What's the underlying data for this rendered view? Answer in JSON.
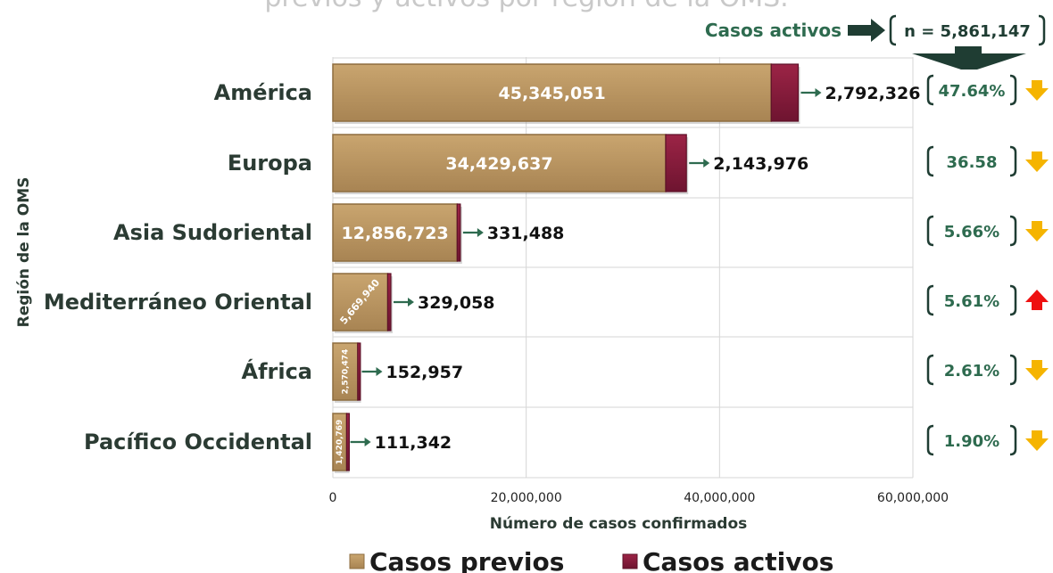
{
  "chart_data": {
    "type": "bar",
    "orientation": "horizontal",
    "stacked": true,
    "title_partial": "previos y activos por región de la OMS.",
    "categories": [
      "América",
      "Europa",
      "Asia Sudoriental",
      "Mediterráneo Oriental",
      "África",
      "Pacífico Occidental"
    ],
    "series": [
      {
        "name": "Casos previos",
        "color": "#b8925e",
        "values": [
          45345051,
          34429637,
          12856723,
          5669940,
          2570474,
          1420769
        ],
        "labels": [
          "45,345,051",
          "34,429,637",
          "12,856,723",
          "5,669,940",
          "2,570,474",
          "1,420,769"
        ]
      },
      {
        "name": "Casos activos",
        "color": "#8b1c3a",
        "values": [
          2792326,
          2143976,
          331488,
          329058,
          152957,
          111342
        ],
        "labels": [
          "2,792,326",
          "2,143,976",
          "331,488",
          "329,058",
          "152,957",
          "111,342"
        ]
      }
    ],
    "active_share": [
      "47.64%",
      "36.58",
      "5.66%",
      "5.61%",
      "2.61%",
      "1.90%"
    ],
    "trend": [
      "down",
      "down",
      "down",
      "up",
      "down",
      "down"
    ],
    "trend_colors": {
      "down": "#f5b400",
      "up": "#ee1111"
    },
    "xlabel": "Número de casos confirmados",
    "ylabel": "Región de la OMS",
    "xlim": [
      0,
      60000000
    ],
    "xticks": [
      0,
      20000000,
      40000000,
      60000000
    ],
    "xtick_labels": [
      "0",
      "20,000,000",
      "40,000,000",
      "60,000,000"
    ],
    "grid": "vertical",
    "legend_position": "bottom",
    "active_header": {
      "label": "Casos activos",
      "total": "n = 5,861,147"
    }
  }
}
